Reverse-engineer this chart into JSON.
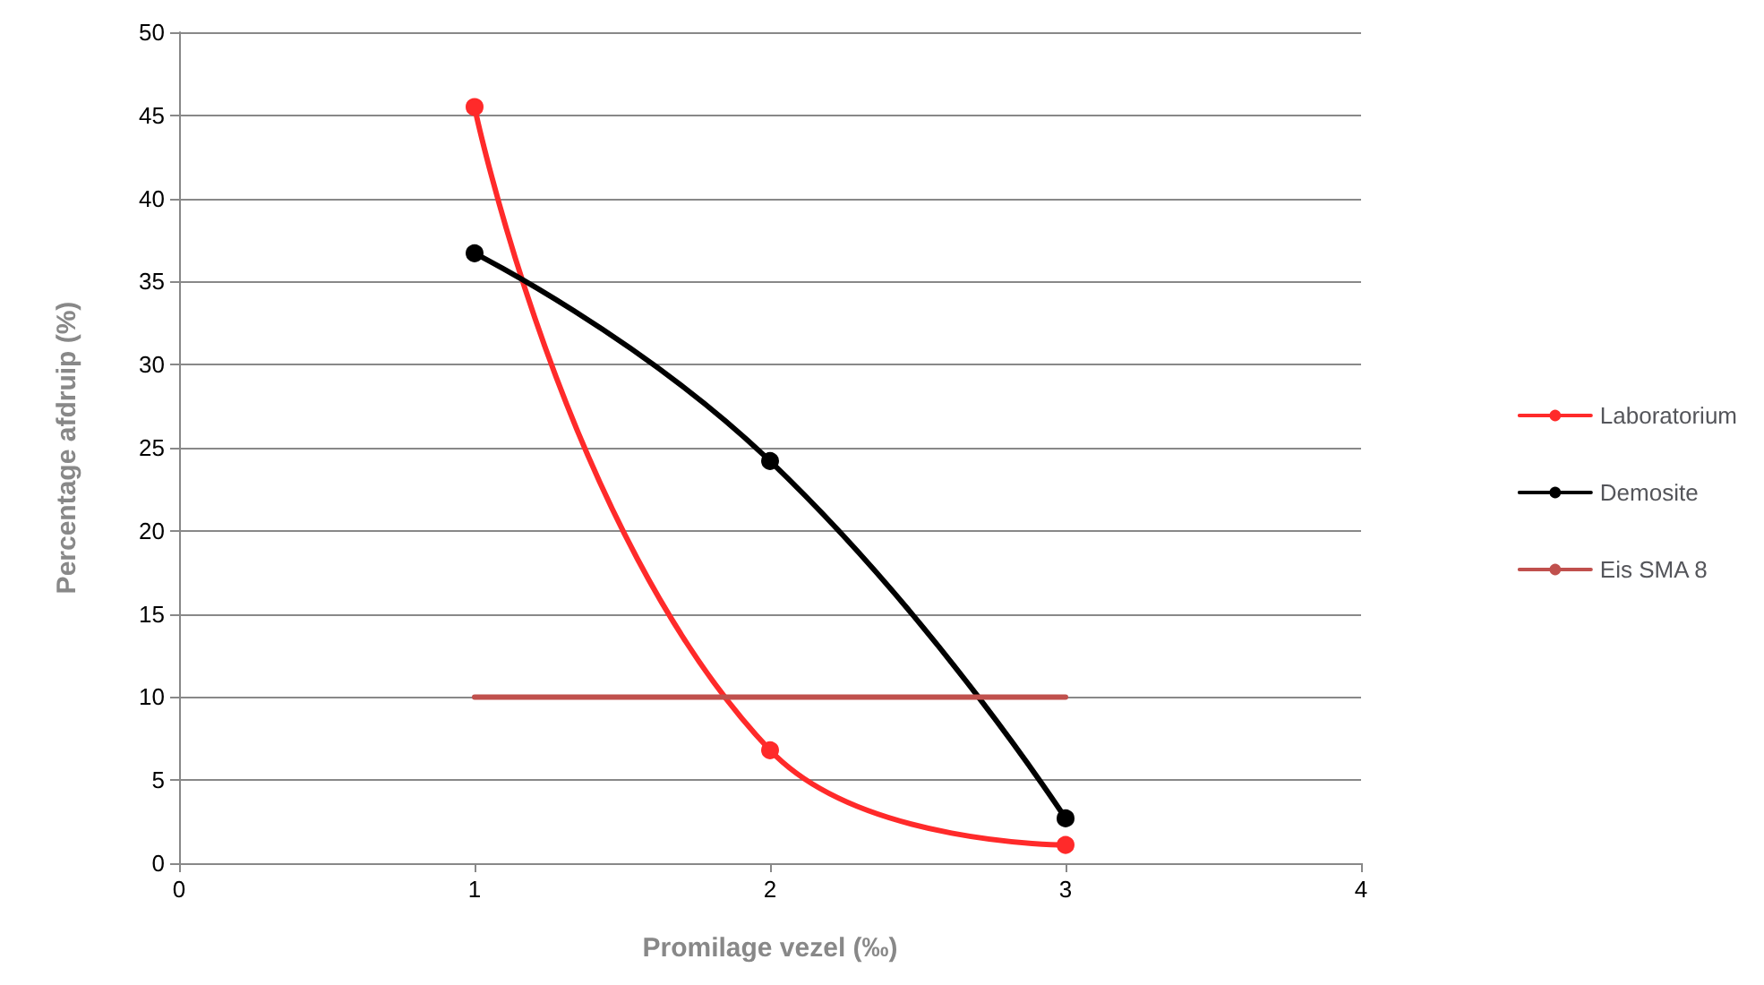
{
  "chart_data": {
    "type": "line",
    "xlabel": "Promilage vezel (‰)",
    "ylabel": "Percentage afdruip (%)",
    "x": [
      1,
      2,
      3
    ],
    "series": [
      {
        "name": "Laboratorium",
        "color": "#ff2a2a",
        "values": [
          45.5,
          6.8,
          1.1
        ]
      },
      {
        "name": "Demosite",
        "color": "#000000",
        "values": [
          36.7,
          24.2,
          2.7
        ]
      },
      {
        "name": "Eis SMA 8",
        "color": "#c0504d",
        "x": [
          1,
          3
        ],
        "values": [
          10,
          10
        ],
        "marker": "none"
      }
    ],
    "xlim": [
      0,
      4
    ],
    "xticks": [
      0,
      1,
      2,
      3,
      4
    ],
    "ylim": [
      0,
      50
    ],
    "yticks": [
      0,
      5,
      10,
      15,
      20,
      25,
      30,
      35,
      40,
      45,
      50
    ],
    "grid": "y",
    "legend": "right",
    "marker": "circle"
  }
}
